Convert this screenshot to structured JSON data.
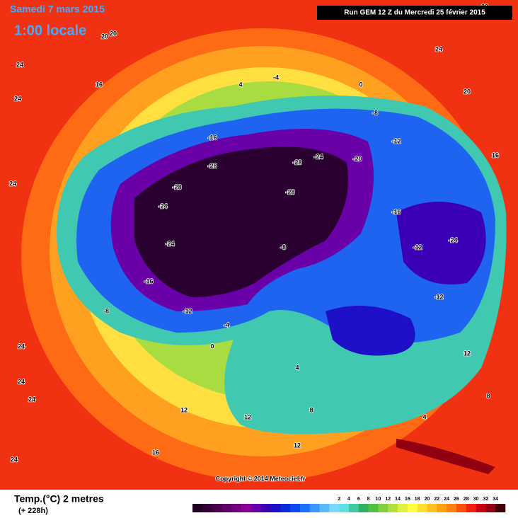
{
  "header": {
    "date": "Samedi 7 mars 2015",
    "time": "1:00 locale",
    "run": "Run GEM 12 Z du Mercredi 25 février 2015"
  },
  "footer": {
    "variable": "Temp.(°C) 2 metres",
    "lead": "(+ 228h)",
    "copyright": "Copyright © 2014 Meteociel.fr"
  },
  "legend": {
    "colors": [
      "#1e0020",
      "#320036",
      "#48004e",
      "#5e0066",
      "#74007e",
      "#8a0096",
      "#6a00a8",
      "#3c00b4",
      "#1e10c8",
      "#0a28dc",
      "#0a4af0",
      "#1a70ff",
      "#3c96ff",
      "#5ab8ff",
      "#78d8ff",
      "#60e0e0",
      "#40c8a0",
      "#30b060",
      "#50c040",
      "#80d040",
      "#b0e040",
      "#e0f040",
      "#ffff40",
      "#ffe030",
      "#ffc020",
      "#ffa010",
      "#ff8010",
      "#ff5010",
      "#f02010",
      "#c80010",
      "#900010",
      "#400008"
    ],
    "ticks": [
      2,
      4,
      6,
      8,
      10,
      12,
      14,
      16,
      18,
      20,
      22,
      24,
      26,
      28,
      30,
      32,
      34
    ]
  },
  "map_labels": [
    "24",
    "20",
    "20",
    "16",
    "24",
    "24",
    "24",
    "12",
    "4",
    "-4",
    "0",
    "-16",
    "-28",
    "-28",
    "-24",
    "-28",
    "-24",
    "-28",
    "-24",
    "-16",
    "-12",
    "-8",
    "-20",
    "-12",
    "-8",
    "-16",
    "-24",
    "-12",
    "-12",
    "-8",
    "-4",
    "0",
    "4",
    "8",
    "12",
    "12",
    "16",
    "24",
    "24",
    "24",
    "28",
    "24",
    "20",
    "16",
    "12",
    "8",
    "4"
  ]
}
